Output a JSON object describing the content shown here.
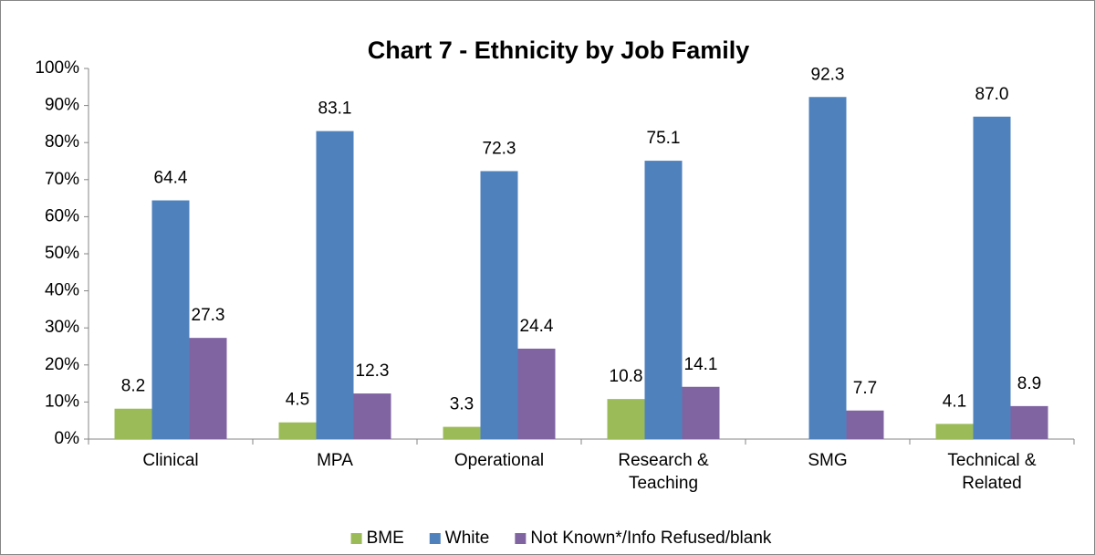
{
  "chart_data": {
    "type": "bar",
    "title": "Chart 7 - Ethnicity by Job Family",
    "categories": [
      "Clinical",
      "MPA",
      "Operational",
      "Research & Teaching",
      "SMG",
      "Technical & Related"
    ],
    "series": [
      {
        "name": "BME",
        "color": "#9bbb59",
        "values": [
          8.2,
          4.5,
          3.3,
          10.8,
          null,
          4.1
        ],
        "value_labels": [
          "8.2",
          "4.5",
          "3.3",
          "10.8",
          null,
          "4.1"
        ]
      },
      {
        "name": "White",
        "color": "#4f81bd",
        "values": [
          64.4,
          83.1,
          72.3,
          75.1,
          92.3,
          87.0
        ],
        "value_labels": [
          "64.4",
          "83.1",
          "72.3",
          "75.1",
          "92.3",
          "87.0"
        ]
      },
      {
        "name": "Not Known*/Info Refused/blank",
        "color": "#8064a2",
        "values": [
          27.3,
          12.3,
          24.4,
          14.1,
          7.7,
          8.9
        ],
        "value_labels": [
          "27.3",
          "12.3",
          "24.4",
          "14.1",
          "7.7",
          "8.9"
        ]
      }
    ],
    "ylim": [
      0,
      100
    ],
    "yticks": [
      {
        "value": 0,
        "label": "0%"
      },
      {
        "value": 10,
        "label": "10%"
      },
      {
        "value": 20,
        "label": "20%"
      },
      {
        "value": 30,
        "label": "30%"
      },
      {
        "value": 40,
        "label": "40%"
      },
      {
        "value": 50,
        "label": "50%"
      },
      {
        "value": 60,
        "label": "60%"
      },
      {
        "value": 70,
        "label": "70%"
      },
      {
        "value": 80,
        "label": "80%"
      },
      {
        "value": 90,
        "label": "90%"
      },
      {
        "value": 100,
        "label": "100%"
      }
    ],
    "legend": "bottom",
    "grid": false
  }
}
